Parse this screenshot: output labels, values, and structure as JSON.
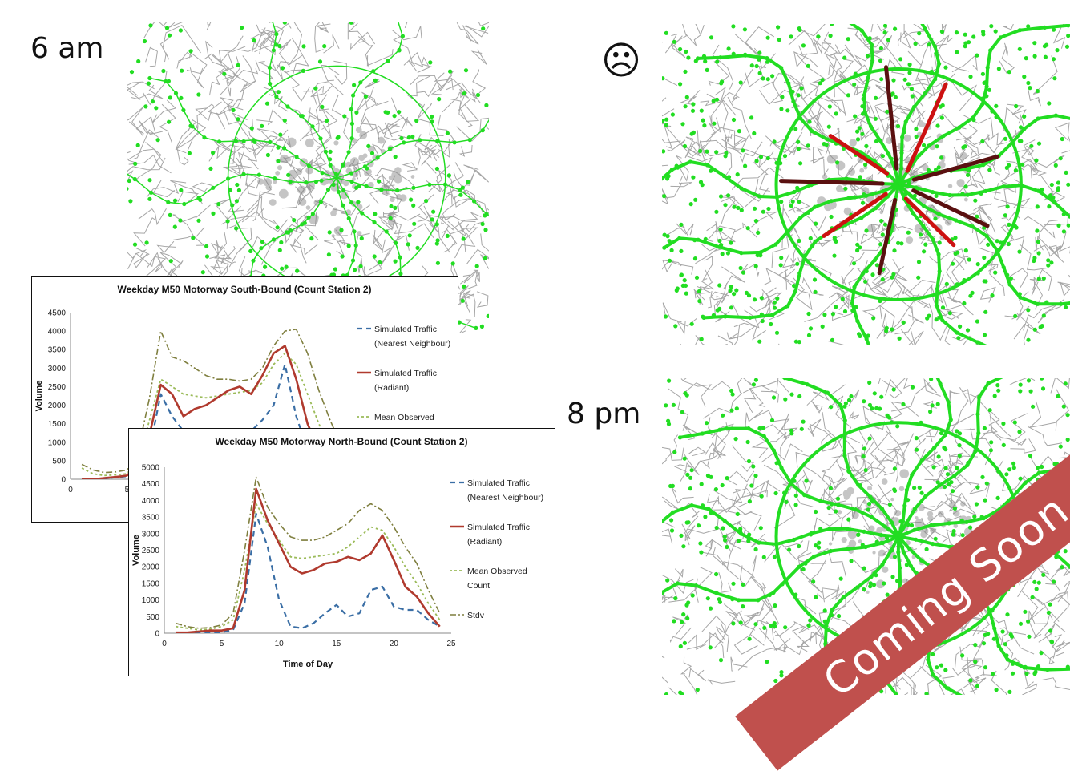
{
  "labels": {
    "time_6am": "6 am",
    "time_8pm": "8 pm",
    "frown": "☹"
  },
  "banner": {
    "text": "Coming Soon"
  },
  "colors": {
    "road": "#a6a6a6",
    "node": "#22dd22",
    "congested": "#cc1111",
    "congested_dark": "#5a1010",
    "banner": "#c0504d",
    "sim_nn": "#3a6ea5",
    "sim_rad": "#b03a2e",
    "mean_obs": "#9bbb59",
    "stdv": "#7f7f3f"
  },
  "chart_data": [
    {
      "type": "line",
      "title": "Weekday M50 Motorway South-Bound (Count Station 2)",
      "ylabel": "Volume",
      "xlabel": "",
      "ylim": [
        0,
        4500
      ],
      "xlim": [
        0,
        25
      ],
      "y_ticks": [
        "0",
        "500",
        "1000",
        "1500",
        "2000",
        "2500",
        "3000",
        "3500",
        "4000",
        "4500"
      ],
      "x_ticks": [
        "0",
        "5"
      ],
      "legend": [
        "Simulated Traffic (Nearest Neighbour)",
        "Simulated Traffic (Radiant)",
        "Mean Observed"
      ],
      "series": [
        {
          "name": "Simulated Traffic (Nearest Neighbour)",
          "style": "dash",
          "x": [
            1,
            2,
            3,
            4,
            5,
            6,
            7,
            8,
            9,
            10,
            11,
            12,
            13,
            14,
            15,
            16,
            17,
            18,
            19,
            20,
            21,
            22,
            23,
            24
          ],
          "y": [
            0,
            0,
            20,
            50,
            80,
            300,
            800,
            2300,
            1700,
            1300,
            1000,
            900,
            1000,
            1100,
            1200,
            1300,
            1600,
            2000,
            3100,
            1700,
            800,
            400,
            200,
            100
          ]
        },
        {
          "name": "Simulated Traffic (Radiant)",
          "style": "solid",
          "x": [
            1,
            2,
            3,
            4,
            5,
            6,
            7,
            8,
            9,
            10,
            11,
            12,
            13,
            14,
            15,
            16,
            17,
            18,
            19,
            20,
            21,
            22,
            23,
            24
          ],
          "y": [
            0,
            0,
            30,
            60,
            100,
            400,
            1200,
            2550,
            2300,
            1700,
            1900,
            2000,
            2200,
            2400,
            2500,
            2300,
            2800,
            3400,
            3600,
            2700,
            1500,
            800,
            400,
            200
          ]
        },
        {
          "name": "Mean Observed",
          "style": "dot",
          "x": [
            1,
            2,
            3,
            4,
            5,
            6,
            7,
            8,
            9,
            10,
            11,
            12,
            13,
            14,
            15,
            16,
            17,
            18,
            19,
            20,
            21,
            22,
            23,
            24
          ],
          "y": [
            300,
            150,
            100,
            120,
            150,
            500,
            1600,
            2700,
            2500,
            2300,
            2250,
            2200,
            2250,
            2300,
            2350,
            2400,
            2600,
            3100,
            3400,
            3100,
            2300,
            1500,
            900,
            500
          ]
        },
        {
          "name": "Stdv",
          "style": "dashdot",
          "x": [
            1,
            2,
            3,
            4,
            5,
            6,
            7,
            8,
            9,
            10,
            11,
            12,
            13,
            14,
            15,
            16,
            17,
            18,
            19,
            20,
            21,
            22,
            23,
            24
          ],
          "y": [
            400,
            250,
            180,
            200,
            250,
            800,
            2200,
            4000,
            3300,
            3200,
            3000,
            2800,
            2700,
            2700,
            2650,
            2700,
            3000,
            3600,
            4000,
            4050,
            3400,
            2400,
            1600,
            900
          ]
        }
      ]
    },
    {
      "type": "line",
      "title": "Weekday M50 Motorway North-Bound (Count Station 2)",
      "ylabel": "Volume",
      "xlabel": "Time of Day",
      "ylim": [
        0,
        5000
      ],
      "xlim": [
        0,
        25
      ],
      "y_ticks": [
        "0",
        "500",
        "1000",
        "1500",
        "2000",
        "2500",
        "3000",
        "3500",
        "4000",
        "4500",
        "5000"
      ],
      "x_ticks": [
        "0",
        "5",
        "10",
        "15",
        "20",
        "25"
      ],
      "legend": [
        "Simulated Traffic (Nearest Neighbour)",
        "Simulated Traffic (Radiant)",
        "Mean Observed Count",
        "Stdv"
      ],
      "series": [
        {
          "name": "Simulated Traffic (Nearest Neighbour)",
          "style": "dash",
          "x": [
            1,
            2,
            3,
            4,
            5,
            6,
            7,
            8,
            9,
            10,
            11,
            12,
            13,
            14,
            15,
            16,
            17,
            18,
            19,
            20,
            21,
            22,
            23,
            24
          ],
          "y": [
            0,
            0,
            0,
            10,
            30,
            100,
            900,
            3600,
            2600,
            1000,
            200,
            150,
            300,
            600,
            850,
            500,
            600,
            1300,
            1400,
            800,
            700,
            700,
            400,
            200
          ]
        },
        {
          "name": "Simulated Traffic (Radiant)",
          "style": "solid",
          "x": [
            1,
            2,
            3,
            4,
            5,
            6,
            7,
            8,
            9,
            10,
            11,
            12,
            13,
            14,
            15,
            16,
            17,
            18,
            19,
            20,
            21,
            22,
            23,
            24
          ],
          "y": [
            20,
            20,
            50,
            80,
            80,
            150,
            1300,
            4350,
            3400,
            2700,
            2000,
            1800,
            1900,
            2100,
            2150,
            2300,
            2200,
            2400,
            2950,
            2200,
            1400,
            1100,
            600,
            200
          ]
        },
        {
          "name": "Mean Observed Count",
          "style": "dot",
          "x": [
            1,
            2,
            3,
            4,
            5,
            6,
            7,
            8,
            9,
            10,
            11,
            12,
            13,
            14,
            15,
            16,
            17,
            18,
            19,
            20,
            21,
            22,
            23,
            24
          ],
          "y": [
            200,
            150,
            100,
            120,
            200,
            400,
            1900,
            3900,
            3300,
            2800,
            2300,
            2250,
            2300,
            2350,
            2400,
            2600,
            2900,
            3200,
            3100,
            2600,
            2000,
            1500,
            900,
            400
          ]
        },
        {
          "name": "Stdv",
          "style": "dashdot",
          "x": [
            1,
            2,
            3,
            4,
            5,
            6,
            7,
            8,
            9,
            10,
            11,
            12,
            13,
            14,
            15,
            16,
            17,
            18,
            19,
            20,
            21,
            22,
            23,
            24
          ],
          "y": [
            300,
            200,
            150,
            170,
            250,
            600,
            2500,
            4700,
            3800,
            3300,
            2900,
            2800,
            2800,
            2900,
            3100,
            3300,
            3700,
            3900,
            3700,
            3200,
            2600,
            2100,
            1300,
            600
          ]
        }
      ]
    }
  ]
}
